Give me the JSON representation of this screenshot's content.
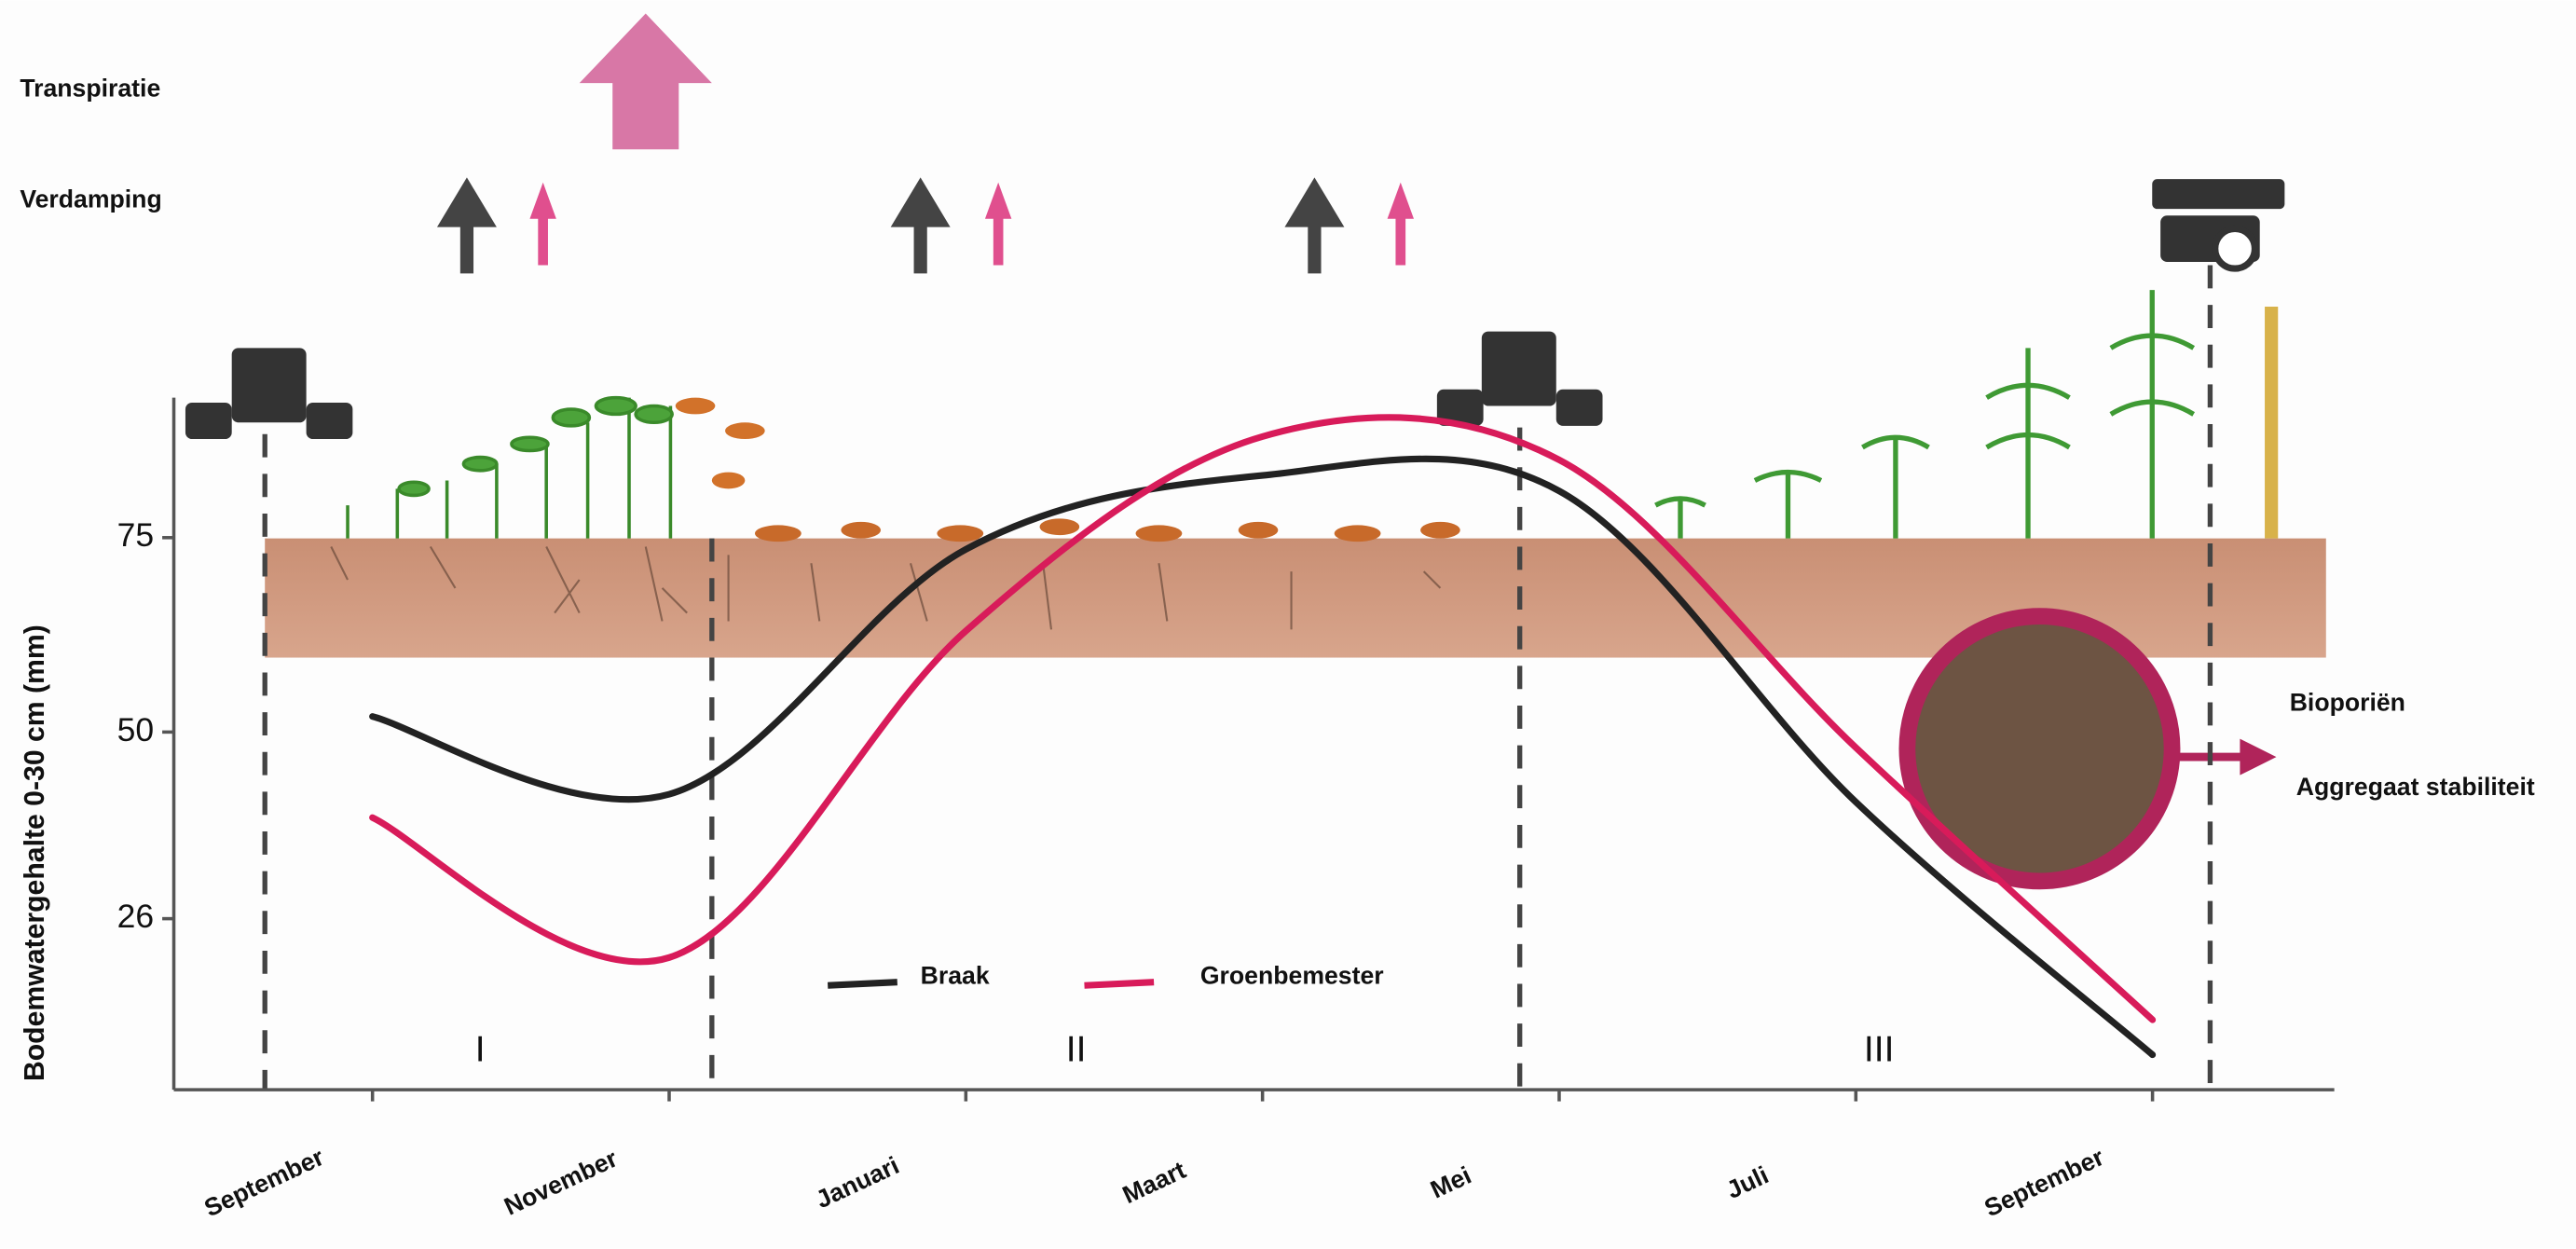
{
  "chart_data": {
    "type": "line",
    "ylabel": "Bodemwatergehalte 0-30 cm (mm)",
    "categories": [
      "September",
      "November",
      "Januari",
      "Maart",
      "Mei",
      "Juli",
      "September"
    ],
    "series": [
      {
        "name": "Braak",
        "color": "#222222",
        "values": [
          52,
          42,
          73.5,
          83,
          81,
          41,
          8.5
        ]
      },
      {
        "name": "Groenbemester",
        "color": "#d81b5a",
        "values": [
          39,
          21,
          63,
          88,
          85,
          48,
          13
        ]
      }
    ],
    "ylim": [
      4,
      93
    ],
    "yticks": [
      26,
      50,
      75
    ],
    "region_labels": [
      "I",
      "II",
      "III"
    ],
    "top_labels": [
      "Transpiratie",
      "Verdamping"
    ],
    "side_labels": [
      "Bioporiën",
      "Aggregaat stabiliteit"
    ]
  }
}
